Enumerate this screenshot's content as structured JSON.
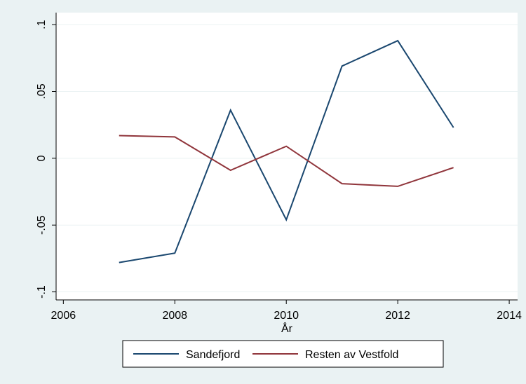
{
  "chart_data": {
    "type": "line",
    "x_label": "År",
    "x": [
      2007,
      2008,
      2009,
      2010,
      2011,
      2012,
      2013
    ],
    "series": [
      {
        "name": "Sandefjord",
        "color": "#1a476f",
        "values": [
          -0.078,
          -0.071,
          0.036,
          -0.046,
          0.069,
          0.088,
          0.023
        ]
      },
      {
        "name": "Resten av Vestfold",
        "color": "#90353b",
        "values": [
          0.017,
          0.016,
          -0.009,
          0.009,
          -0.019,
          -0.021,
          -0.007
        ]
      }
    ],
    "xlim": [
      2005.87,
      2014.15
    ],
    "xticks": [
      2006,
      2008,
      2010,
      2012,
      2014
    ],
    "ylim": [
      -0.106,
      0.109
    ],
    "yticks": [
      {
        "value": -0.1,
        "label": "-.1"
      },
      {
        "value": -0.05,
        "label": "-.05"
      },
      0,
      {
        "value": 0.05,
        "label": ".05"
      },
      {
        "value": 0.1,
        "label": ".1"
      }
    ],
    "grid": true,
    "legend": "bottom"
  }
}
